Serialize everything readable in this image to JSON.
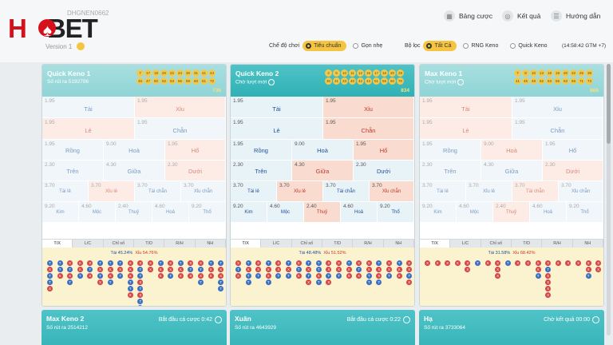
{
  "header": {
    "logo": "HDBET",
    "user_id": "DHGNEN0662",
    "version": "Version 1",
    "nav": [
      {
        "label": "Bảng cược",
        "icon": "table-icon"
      },
      {
        "label": "Kết quả",
        "icon": "result-icon"
      },
      {
        "label": "Hướng dẫn",
        "icon": "guide-icon"
      }
    ]
  },
  "filters": {
    "mode_label": "Chế độ chơi",
    "modes": [
      {
        "label": "Tiêu chuẩn",
        "on": true
      },
      {
        "label": "Gọn nhẹ",
        "on": false
      }
    ],
    "filter_label": "Bộ lọc",
    "filters": [
      {
        "label": "Tất Cả",
        "on": true
      },
      {
        "label": "RNG Keno",
        "on": false
      },
      {
        "label": "Quick Keno",
        "on": false
      }
    ],
    "clock": "(14:58:42 GTM +7)"
  },
  "cards": [
    {
      "title": "Quick Keno 1",
      "sub": "Số rút ra 5192706",
      "sub_icon": false,
      "faded": true,
      "total": "736",
      "balls": [
        "7",
        "17",
        "18",
        "20",
        "22",
        "24",
        "30",
        "31",
        "41",
        "44",
        "45",
        "47",
        "50",
        "52",
        "53",
        "56",
        "59",
        "60",
        "61",
        "72"
      ],
      "odds": [
        "1.95",
        "1.95",
        "1.95",
        "1.95",
        "1.95",
        "9.00",
        "1.95",
        "2.30",
        "4.30",
        "2.30",
        "3.70",
        "3.70",
        "3.70",
        "3.70",
        "9.20",
        "4.60",
        "2.40",
        "4.60",
        "9.20"
      ],
      "labels": [
        "Tài",
        "Xỉu",
        "Lẻ",
        "Chẵn",
        "Rồng",
        "Hoà",
        "Hổ",
        "Trên",
        "Giữa",
        "Dưới",
        "Tài lẻ",
        "Xỉu lẻ",
        "Tài chẵn",
        "Xỉu chẵn",
        "Kim",
        "Mộc",
        "Thuỷ",
        "Hoả",
        "Thổ"
      ],
      "hot": [
        1,
        2,
        6,
        9,
        11
      ],
      "pct_t": "Tài 45.24%",
      "pct_x": "Xỉu 54.76%",
      "cols": [
        "TXTTX",
        "TTX",
        "XTXT",
        "XXT",
        "XTX",
        "TXTX",
        "TXXT",
        "TXT",
        "XXXTTX",
        "XTTXTXTT",
        "XX",
        "TXX",
        "XXT",
        "TXX",
        "XTX",
        "XTXT",
        "TXX",
        "TXXTT"
      ]
    },
    {
      "title": "Quick Keno 2",
      "sub": "Chờ lượt mới",
      "sub_icon": true,
      "faded": false,
      "total": "834",
      "balls": [
        "4",
        "9",
        "10",
        "11",
        "12",
        "15",
        "17",
        "18",
        "20",
        "28",
        "30",
        "31",
        "33",
        "40",
        "42",
        "43",
        "51",
        "55",
        "60",
        "70"
      ],
      "odds": [
        "1.95",
        "1.95",
        "1.95",
        "1.95",
        "1.95",
        "9.00",
        "1.95",
        "2.30",
        "4.30",
        "2.30",
        "3.70",
        "3.70",
        "3.70",
        "3.70",
        "9.20",
        "4.60",
        "2.40",
        "4.60",
        "9.20"
      ],
      "labels": [
        "Tài",
        "Xỉu",
        "Lẻ",
        "Chẵn",
        "Rồng",
        "Hoà",
        "Hổ",
        "Trên",
        "Giữa",
        "Dưới",
        "Tài lẻ",
        "Xỉu lẻ",
        "Tài chẵn",
        "Xỉu chẵn",
        "Kim",
        "Mộc",
        "Thuỷ",
        "Hoả",
        "Thổ"
      ],
      "hot": [
        1,
        3,
        6,
        8,
        11,
        13,
        16
      ],
      "pct_t": "Tài 48.48%",
      "pct_x": "Xỉu 51.52%",
      "cols": [
        "XTX",
        "TXTT",
        "XXT",
        "TXXT",
        "XXT",
        "TXT",
        "XTX",
        "TXTX",
        "TTXT",
        "XXTX",
        "XXT",
        "TXX",
        "XTX",
        "XXTT",
        "TXXT",
        "XXT",
        "TXX",
        "XXTX"
      ]
    },
    {
      "title": "Max Keno 1",
      "sub": "Chờ lượt mới",
      "sub_icon": true,
      "faded": true,
      "total": "866",
      "balls": [
        "7",
        "8",
        "10",
        "13",
        "18",
        "19",
        "20",
        "22",
        "25",
        "38",
        "41",
        "45",
        "48",
        "52",
        "53",
        "55",
        "63",
        "66",
        "71",
        "73"
      ],
      "odds": [
        "1.95",
        "1.95",
        "1.95",
        "1.95",
        "1.95",
        "9.00",
        "1.95",
        "2.30",
        "4.30",
        "2.30",
        "3.70",
        "3.70",
        "3.70",
        "3.70",
        "9.20",
        "4.60",
        "2.40",
        "4.60",
        "9.20"
      ],
      "labels": [
        "Tài",
        "Xỉu",
        "Lẻ",
        "Chẵn",
        "Rồng",
        "Hoà",
        "Hổ",
        "Trên",
        "Giữa",
        "Dưới",
        "Tài lẻ",
        "Xỉu lẻ",
        "Tài chẵn",
        "Xỉu chẵn",
        "Kim",
        "Mộc",
        "Thuỷ",
        "Hoả",
        "Thổ"
      ],
      "hot": [
        0,
        2,
        5,
        9,
        12,
        16
      ],
      "pct_t": "Tài 31.58%",
      "pct_x": "Xỉu 68.42%",
      "cols": [
        "X",
        "X",
        "X",
        "X",
        "XX",
        "T",
        "X",
        "XXX",
        "T",
        "X",
        "X",
        "XXT",
        "XTXXXX",
        "X",
        "X",
        "X",
        "XXT",
        "XX"
      ]
    }
  ],
  "tabs": [
    "T/X",
    "L/C",
    "Chỉ số",
    "T/D",
    "R/H",
    "NH"
  ],
  "bottom": [
    {
      "title": "Max Keno 2",
      "sub": "Số rút ra 2514212",
      "right": "Bắt đầu cá cược 0:42"
    },
    {
      "title": "Xuân",
      "sub": "Số rút ra 4643929",
      "right": "Bắt đầu cá cược 0:22"
    },
    {
      "title": "Hạ",
      "sub": "Số rút ra 3733064",
      "right": "Chờ kết quả 00:00"
    }
  ]
}
